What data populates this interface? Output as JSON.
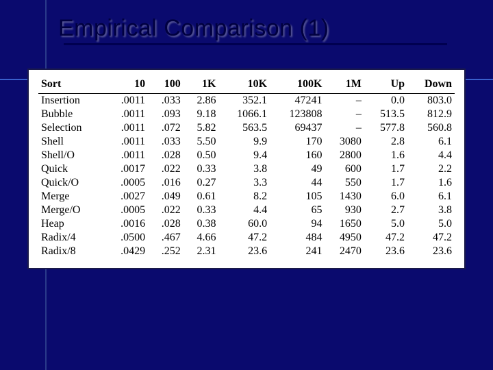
{
  "title": "Empirical Comparison (1)",
  "colors": {
    "slide_bg": "#0a0a6e",
    "title_text": "#000040",
    "panel_bg": "#ffffff",
    "panel_border": "#1a1a4a",
    "accent_line": "#3a5fcd",
    "vert_line": "#2a3a8a",
    "table_text": "#000000"
  },
  "table": {
    "type": "table",
    "columns": [
      "Sort",
      "10",
      "100",
      "1K",
      "10K",
      "100K",
      "1M",
      "Up",
      "Down"
    ],
    "col_align": [
      "left",
      "right",
      "right",
      "right",
      "right",
      "right",
      "right",
      "right",
      "right"
    ],
    "rows": [
      [
        "Insertion",
        ".0011",
        ".033",
        "2.86",
        "352.1",
        "47241",
        "–",
        "0.0",
        "803.0"
      ],
      [
        "Bubble",
        ".0011",
        ".093",
        "9.18",
        "1066.1",
        "123808",
        "–",
        "513.5",
        "812.9"
      ],
      [
        "Selection",
        ".0011",
        ".072",
        "5.82",
        "563.5",
        "69437",
        "–",
        "577.8",
        "560.8"
      ],
      [
        "Shell",
        ".0011",
        ".033",
        "5.50",
        "9.9",
        "170",
        "3080",
        "2.8",
        "6.1"
      ],
      [
        "Shell/O",
        ".0011",
        ".028",
        "0.50",
        "9.4",
        "160",
        "2800",
        "1.6",
        "4.4"
      ],
      [
        "Quick",
        ".0017",
        ".022",
        "0.33",
        "3.8",
        "49",
        "600",
        "1.7",
        "2.2"
      ],
      [
        "Quick/O",
        ".0005",
        ".016",
        "0.27",
        "3.3",
        "44",
        "550",
        "1.7",
        "1.6"
      ],
      [
        "Merge",
        ".0027",
        ".049",
        "0.61",
        "8.2",
        "105",
        "1430",
        "6.0",
        "6.1"
      ],
      [
        "Merge/O",
        ".0005",
        ".022",
        "0.33",
        "4.4",
        "65",
        "930",
        "2.7",
        "3.8"
      ],
      [
        "Heap",
        ".0016",
        ".028",
        "0.38",
        "60.0",
        "94",
        "1650",
        "5.0",
        "5.0"
      ],
      [
        "Radix/4",
        ".0500",
        ".467",
        "4.66",
        "47.2",
        "484",
        "4950",
        "47.2",
        "47.2"
      ],
      [
        "Radix/8",
        ".0429",
        ".252",
        "2.31",
        "23.6",
        "241",
        "2470",
        "23.6",
        "23.6"
      ]
    ],
    "header_fontweight": "bold",
    "fontsize_pt": 12,
    "header_border_bottom": "1.5px solid #000"
  }
}
